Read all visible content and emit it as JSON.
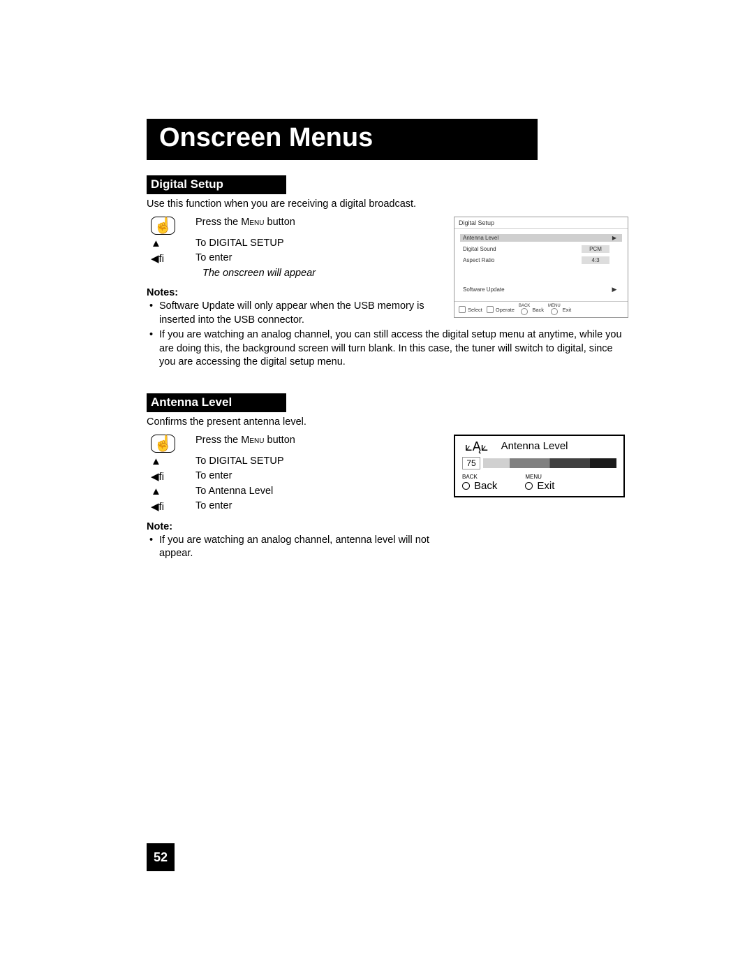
{
  "page": {
    "title": "Onscreen Menus",
    "number": "52"
  },
  "digital_setup": {
    "heading": "Digital Setup",
    "intro": "Use this function when you are receiving a digital broadcast.",
    "steps": {
      "press_menu_pre": "Press the ",
      "press_menu_word": "Menu",
      "press_menu_post": " button",
      "to_digital": "To DIGITAL SETUP",
      "to_enter": "To enter"
    },
    "appear": "The onscreen will appear",
    "notes_label": "Notes:",
    "note1": "Software Update will only appear when the USB memory is inserted into the USB connector.",
    "note2": "If you are watching an analog channel, you can still access the digital setup menu at anytime, while you are doing this, the background screen will turn blank.  In this case, the tuner will switch to digital, since you are accessing the digital setup menu.",
    "osd": {
      "title": "Digital Setup",
      "row1": "Antenna Level",
      "row2_label": "Digital Sound",
      "row2_value": "PCM",
      "row3_label": "Aspect Ratio",
      "row3_value": "4:3",
      "row4": "Software Update",
      "footer": {
        "select": "Select",
        "operate": "Operate",
        "back_tiny": "BACK",
        "back": "Back",
        "menu_tiny": "MENU",
        "exit": "Exit"
      }
    }
  },
  "antenna_level": {
    "heading": "Antenna Level",
    "intro": "Confirms the present antenna level.",
    "steps": {
      "press_menu_pre": "Press the ",
      "press_menu_word": "Menu",
      "press_menu_post": " button",
      "to_digital": "To DIGITAL SETUP",
      "to_enter": "To enter",
      "to_antenna": "To Antenna Level",
      "to_enter2": "To enter"
    },
    "note_label": "Note:",
    "note1": "If you are watching an analog channel, antenna level will not appear.",
    "osd": {
      "title": "Antenna Level",
      "value": "75",
      "back_tiny": "BACK",
      "back": "Back",
      "menu_tiny": "MENU",
      "exit": "Exit"
    }
  },
  "glyphs": {
    "up": "▲",
    "left_fi": "◀ﬁ",
    "right": "▶",
    "bullet": "•"
  }
}
